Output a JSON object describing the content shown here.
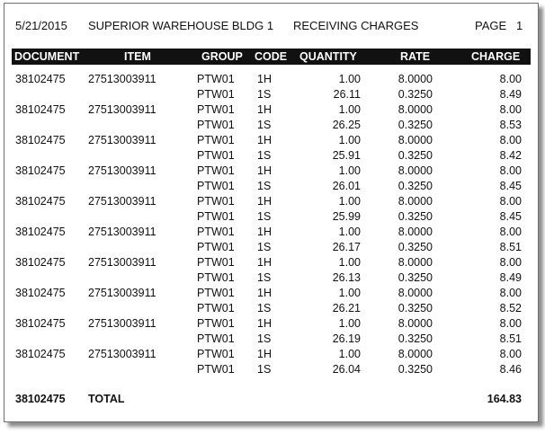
{
  "report": {
    "date": "5/21/2015",
    "location": "SUPERIOR WAREHOUSE BLDG 1",
    "title": "RECEIVING CHARGES",
    "page_label": "PAGE",
    "page_number": "1"
  },
  "columns": {
    "document": "DOCUMENT",
    "item": "ITEM",
    "group": "GROUP",
    "code": "CODE",
    "quantity": "QUANTITY",
    "rate": "RATE",
    "charge": "CHARGE"
  },
  "rows": [
    {
      "document": "38102475",
      "item": "27513003911",
      "group": "PTW01",
      "code": "1H",
      "quantity": "1.00",
      "rate": "8.0000",
      "charge": "8.00"
    },
    {
      "document": "",
      "item": "",
      "group": "PTW01",
      "code": "1S",
      "quantity": "26.11",
      "rate": "0.3250",
      "charge": "8.49"
    },
    {
      "document": "38102475",
      "item": "27513003911",
      "group": "PTW01",
      "code": "1H",
      "quantity": "1.00",
      "rate": "8.0000",
      "charge": "8.00"
    },
    {
      "document": "",
      "item": "",
      "group": "PTW01",
      "code": "1S",
      "quantity": "26.25",
      "rate": "0.3250",
      "charge": "8.53"
    },
    {
      "document": "38102475",
      "item": "27513003911",
      "group": "PTW01",
      "code": "1H",
      "quantity": "1.00",
      "rate": "8.0000",
      "charge": "8.00"
    },
    {
      "document": "",
      "item": "",
      "group": "PTW01",
      "code": "1S",
      "quantity": "25.91",
      "rate": "0.3250",
      "charge": "8.42"
    },
    {
      "document": "38102475",
      "item": "27513003911",
      "group": "PTW01",
      "code": "1H",
      "quantity": "1.00",
      "rate": "8.0000",
      "charge": "8.00"
    },
    {
      "document": "",
      "item": "",
      "group": "PTW01",
      "code": "1S",
      "quantity": "26.01",
      "rate": "0.3250",
      "charge": "8.45"
    },
    {
      "document": "38102475",
      "item": "27513003911",
      "group": "PTW01",
      "code": "1H",
      "quantity": "1.00",
      "rate": "8.0000",
      "charge": "8.00"
    },
    {
      "document": "",
      "item": "",
      "group": "PTW01",
      "code": "1S",
      "quantity": "25.99",
      "rate": "0.3250",
      "charge": "8.45"
    },
    {
      "document": "38102475",
      "item": "27513003911",
      "group": "PTW01",
      "code": "1H",
      "quantity": "1.00",
      "rate": "8.0000",
      "charge": "8.00"
    },
    {
      "document": "",
      "item": "",
      "group": "PTW01",
      "code": "1S",
      "quantity": "26.17",
      "rate": "0.3250",
      "charge": "8.51"
    },
    {
      "document": "38102475",
      "item": "27513003911",
      "group": "PTW01",
      "code": "1H",
      "quantity": "1.00",
      "rate": "8.0000",
      "charge": "8.00"
    },
    {
      "document": "",
      "item": "",
      "group": "PTW01",
      "code": "1S",
      "quantity": "26.13",
      "rate": "0.3250",
      "charge": "8.49"
    },
    {
      "document": "38102475",
      "item": "27513003911",
      "group": "PTW01",
      "code": "1H",
      "quantity": "1.00",
      "rate": "8.0000",
      "charge": "8.00"
    },
    {
      "document": "",
      "item": "",
      "group": "PTW01",
      "code": "1S",
      "quantity": "26.21",
      "rate": "0.3250",
      "charge": "8.52"
    },
    {
      "document": "38102475",
      "item": "27513003911",
      "group": "PTW01",
      "code": "1H",
      "quantity": "1.00",
      "rate": "8.0000",
      "charge": "8.00"
    },
    {
      "document": "",
      "item": "",
      "group": "PTW01",
      "code": "1S",
      "quantity": "26.19",
      "rate": "0.3250",
      "charge": "8.51"
    },
    {
      "document": "38102475",
      "item": "27513003911",
      "group": "PTW01",
      "code": "1H",
      "quantity": "1.00",
      "rate": "8.0000",
      "charge": "8.00"
    },
    {
      "document": "",
      "item": "",
      "group": "PTW01",
      "code": "1S",
      "quantity": "26.04",
      "rate": "0.3250",
      "charge": "8.46"
    }
  ],
  "total": {
    "document": "38102475",
    "label": "TOTAL",
    "charge": "164.83"
  }
}
